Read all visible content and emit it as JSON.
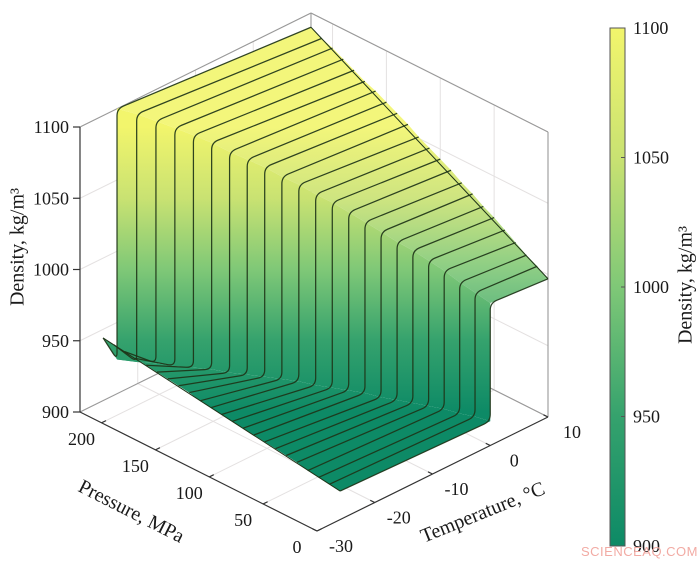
{
  "figure": {
    "watermark": "SCIENCEAQ.COM",
    "background": "#ffffff"
  },
  "chart_data": {
    "type": "surface-3d",
    "title": "",
    "description": "3D surface of fluid density versus temperature and pressure showing an ice-to-liquid phase-transition step along the melting curve; isobar mesh lines drawn every 10 MPa; surface colored by density (green = 900, yellow = 1100 kg/m3)",
    "x_axis": {
      "label": "Temperature, °C",
      "range": [
        -30,
        10
      ],
      "ticks": [
        -30,
        -20,
        -10,
        0,
        10
      ]
    },
    "y_axis": {
      "label": "Pressure, MPa",
      "range": [
        0,
        220
      ],
      "ticks": [
        0,
        50,
        100,
        150,
        200
      ]
    },
    "z_axis": {
      "label": "Density, kg/m³",
      "range": [
        900,
        1100
      ],
      "ticks": [
        900,
        950,
        1000,
        1050,
        1100
      ]
    },
    "colorbar": {
      "label": "Density, kg/m³",
      "ticks": [
        900,
        950,
        1000,
        1050,
        1100
      ],
      "stops": [
        {
          "v": 1100,
          "c": "#f2f56c"
        },
        {
          "v": 1050,
          "c": "#c9e272"
        },
        {
          "v": 1000,
          "c": "#7fc877"
        },
        {
          "v": 950,
          "c": "#35a26d"
        },
        {
          "v": 900,
          "c": "#0d8a66"
        }
      ]
    },
    "grid": {
      "on": true,
      "color": "#e4e1e1",
      "box_color": "#999999",
      "axis_color": "#333333"
    },
    "surface": {
      "t_min": -26,
      "t_max": 10,
      "edge_color": "#1e3418",
      "isobars": [
        {
          "p": 0,
          "tm": 0,
          "rho_ice_a": 920,
          "rho_ice_m": 917,
          "rho_liq_m": 1000,
          "rho_liq_b": 997
        },
        {
          "p": 10,
          "tm": -0.77,
          "rho_ice_a": 921,
          "rho_ice_m": 918,
          "rho_liq_m": 1005,
          "rho_liq_b": 1002
        },
        {
          "p": 20,
          "tm": -1.56,
          "rho_ice_a": 922,
          "rho_ice_m": 918,
          "rho_liq_m": 1010,
          "rho_liq_b": 1006
        },
        {
          "p": 30,
          "tm": -2.38,
          "rho_ice_a": 923,
          "rho_ice_m": 919,
          "rho_liq_m": 1016,
          "rho_liq_b": 1011
        },
        {
          "p": 40,
          "tm": -3.21,
          "rho_ice_a": 925,
          "rho_ice_m": 919,
          "rho_liq_m": 1021,
          "rho_liq_b": 1016
        },
        {
          "p": 50,
          "tm": -4.07,
          "rho_ice_a": 926,
          "rho_ice_m": 919,
          "rho_liq_m": 1026,
          "rho_liq_b": 1021
        },
        {
          "p": 60,
          "tm": -4.94,
          "rho_ice_a": 927,
          "rho_ice_m": 919,
          "rho_liq_m": 1030,
          "rho_liq_b": 1025
        },
        {
          "p": 70,
          "tm": -5.85,
          "rho_ice_a": 928,
          "rho_ice_m": 919,
          "rho_liq_m": 1035,
          "rho_liq_b": 1030
        },
        {
          "p": 80,
          "tm": -6.77,
          "rho_ice_a": 929,
          "rho_ice_m": 920,
          "rho_liq_m": 1040,
          "rho_liq_b": 1034
        },
        {
          "p": 90,
          "tm": -7.72,
          "rho_ice_a": 930,
          "rho_ice_m": 920,
          "rho_liq_m": 1045,
          "rho_liq_b": 1039
        },
        {
          "p": 100,
          "tm": -8.7,
          "rho_ice_a": 931,
          "rho_ice_m": 920,
          "rho_liq_m": 1050,
          "rho_liq_b": 1043
        },
        {
          "p": 110,
          "tm": -9.71,
          "rho_ice_a": 932,
          "rho_ice_m": 920,
          "rho_liq_m": 1054,
          "rho_liq_b": 1047
        },
        {
          "p": 120,
          "tm": -10.76,
          "rho_ice_a": 933,
          "rho_ice_m": 921,
          "rho_liq_m": 1059,
          "rho_liq_b": 1051
        },
        {
          "p": 130,
          "tm": -11.83,
          "rho_ice_a": 934,
          "rho_ice_m": 921,
          "rho_liq_m": 1063,
          "rho_liq_b": 1056
        },
        {
          "p": 140,
          "tm": -12.94,
          "rho_ice_a": 936,
          "rho_ice_m": 921,
          "rho_liq_m": 1068,
          "rho_liq_b": 1060
        },
        {
          "p": 150,
          "tm": -14.1,
          "rho_ice_a": 937,
          "rho_ice_m": 921,
          "rho_liq_m": 1072,
          "rho_liq_b": 1064
        },
        {
          "p": 160,
          "tm": -15.29,
          "rho_ice_a": 938,
          "rho_ice_m": 921,
          "rho_liq_m": 1076,
          "rho_liq_b": 1068
        },
        {
          "p": 170,
          "tm": -16.53,
          "rho_ice_a": 939,
          "rho_ice_m": 922,
          "rho_liq_m": 1081,
          "rho_liq_b": 1071
        },
        {
          "p": 180,
          "tm": -17.82,
          "rho_ice_a": 940,
          "rho_ice_m": 922,
          "rho_liq_m": 1085,
          "rho_liq_b": 1075
        },
        {
          "p": 190,
          "tm": -19.17,
          "rho_ice_a": 941,
          "rho_ice_m": 922,
          "rho_liq_m": 1089,
          "rho_liq_b": 1079
        },
        {
          "p": 200,
          "tm": -20.58,
          "rho_ice_a": 942,
          "rho_ice_m": 923,
          "rho_liq_m": 1093,
          "rho_liq_b": 1083
        },
        {
          "p": 210,
          "tm": -22.05,
          "rho_ice_a": 943,
          "rho_ice_m": 923,
          "rho_liq_m": 1097,
          "rho_liq_b": 1086
        },
        {
          "p": 220,
          "tm": -23.59,
          "rho_ice_a": 944,
          "rho_ice_m": 924,
          "rho_liq_m": 1101,
          "rho_liq_b": 1090
        }
      ]
    }
  }
}
